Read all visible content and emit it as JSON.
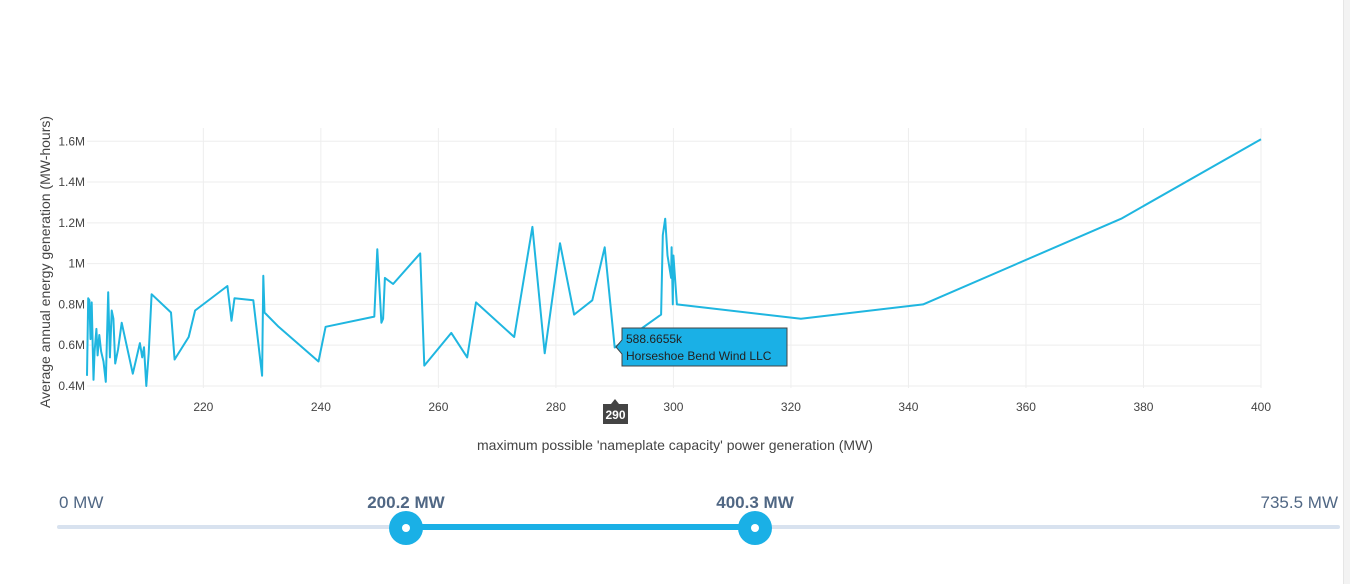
{
  "chart_data": {
    "type": "line",
    "xlabel": "maximum possible 'nameplate capacity' power generation (MW)",
    "ylabel": "Average annual energy generation (MW-hours)",
    "xlim": [
      200.2,
      400
    ],
    "ylim": [
      390000,
      1665000
    ],
    "x_ticks": [
      220,
      240,
      260,
      280,
      300,
      320,
      340,
      360,
      380,
      400
    ],
    "x_tick_labels": [
      "220",
      "240",
      "260",
      "280",
      "300",
      "320",
      "340",
      "360",
      "380",
      "400"
    ],
    "y_ticks": [
      400000,
      600000,
      800000,
      1000000,
      1200000,
      1400000,
      1600000
    ],
    "y_tick_labels": [
      "0.4M",
      "0.6M",
      "0.8M",
      "1M",
      "1.2M",
      "1.4M",
      "1.6M"
    ],
    "grid": true,
    "color": "#1fb6e0",
    "series": [
      {
        "x": [
          200.2,
          200.4,
          200.6,
          200.8,
          201.0,
          201.3,
          201.5,
          201.8,
          202.0,
          202.3,
          202.6,
          203.0,
          203.4,
          203.8,
          204.1,
          204.4,
          204.7,
          205.0,
          205.5,
          206.1,
          208.0,
          209.2,
          209.6,
          209.9,
          210.3,
          210.7,
          211.2,
          214.5,
          215.1,
          217.5,
          218.6,
          224.1,
          224.8,
          225.3,
          228.5,
          230.0,
          230.2,
          230.4,
          232.8,
          239.6,
          240.8,
          249.1,
          249.6,
          249.9,
          250.3,
          250.6,
          250.9,
          252.3,
          256.9,
          257.6,
          262.2,
          264.9,
          266.4,
          272.9,
          276.0,
          278.1,
          280.7,
          283.1,
          286.2,
          288.3,
          290.0,
          297.9,
          298.2,
          298.6,
          299.0,
          299.6,
          299.7,
          299.9,
          300.0,
          300.6,
          321.7,
          342.5,
          376.2,
          400.0
        ],
        "y": [
          450000,
          830000,
          820000,
          630000,
          810000,
          430000,
          570000,
          680000,
          550000,
          650000,
          570000,
          520000,
          420000,
          860000,
          540000,
          770000,
          730000,
          510000,
          580000,
          710000,
          460000,
          610000,
          540000,
          590000,
          400000,
          560000,
          850000,
          760000,
          530000,
          640000,
          770000,
          890000,
          720000,
          830000,
          820000,
          450000,
          940000,
          760000,
          690000,
          520000,
          690000,
          740000,
          1070000,
          920000,
          710000,
          730000,
          930000,
          900000,
          1050000,
          500000,
          660000,
          540000,
          810000,
          640000,
          1180000,
          560000,
          1100000,
          750000,
          820000,
          1080000,
          588666,
          750000,
          1140000,
          1220000,
          1040000,
          930000,
          1080000,
          800000,
          1040000,
          800000,
          730000,
          800000,
          1220000,
          1610000
        ]
      }
    ]
  },
  "hover": {
    "value": "588.6655k",
    "name": "Horseshoe Bend Wind LLC",
    "x_spike_label": "290"
  },
  "slider": {
    "min_label": "0 MW",
    "max_label": "735.5 MW",
    "low_label": "200.2 MW",
    "high_label": "400.3 MW",
    "min": 0,
    "max": 735.5,
    "low": 200.2,
    "high": 400.3
  }
}
